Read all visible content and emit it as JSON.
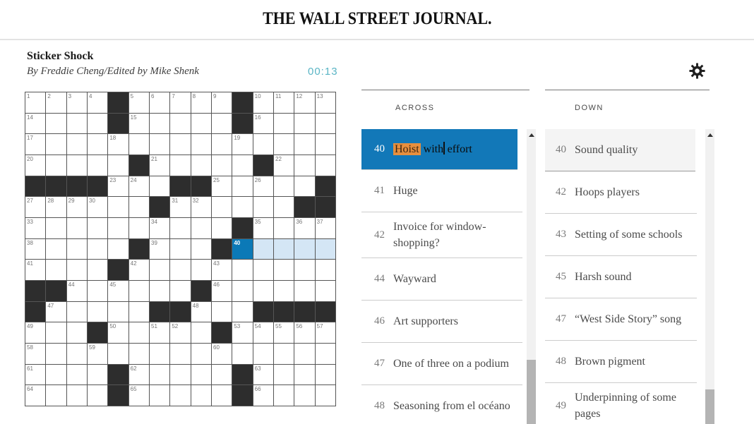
{
  "masthead": "THE WALL STREET JOURNAL.",
  "puzzle": {
    "title": "Sticker Shock",
    "byline": "By Freddie Cheng/Edited by Mike Shenk",
    "timer": "00:13"
  },
  "icons": {
    "settings": "gear",
    "scroll_up": "up-triangle"
  },
  "colors": {
    "selected_cell_blue": "#0b79b7",
    "word_highlight_blue": "#d4e6f5",
    "selected_clue_bg": "#1278b8",
    "text_selection_orange": "#e78f3e",
    "timer_teal": "#5ab5c5",
    "black_square": "#2d2d2d"
  },
  "grid": {
    "size": 15,
    "rows": [
      "....#.....#....",
      "....#.....#....",
      "...............",
      ".....#.....#...",
      "####...##.....#",
      "......#......##",
      "..........#....",
      ".....#...#.....",
      "....#..........",
      "##......#......",
      "#.....##...####",
      "...#.....#.....",
      "...............",
      "....#.....#....",
      "....#.....#...."
    ],
    "numbers": [
      [
        1,
        2,
        3,
        4,
        0,
        5,
        6,
        7,
        8,
        9,
        0,
        10,
        11,
        12,
        13
      ],
      [
        14,
        0,
        0,
        0,
        0,
        15,
        0,
        0,
        0,
        0,
        0,
        16,
        0,
        0,
        0
      ],
      [
        17,
        0,
        0,
        0,
        18,
        0,
        0,
        0,
        0,
        0,
        19,
        0,
        0,
        0,
        0
      ],
      [
        20,
        0,
        0,
        0,
        0,
        0,
        21,
        0,
        0,
        0,
        0,
        0,
        22,
        0,
        0
      ],
      [
        0,
        0,
        0,
        0,
        23,
        24,
        0,
        0,
        0,
        25,
        0,
        26,
        0,
        0,
        0
      ],
      [
        27,
        28,
        29,
        30,
        0,
        0,
        0,
        31,
        32,
        0,
        0,
        0,
        0,
        0,
        0
      ],
      [
        33,
        0,
        0,
        0,
        0,
        0,
        34,
        0,
        0,
        0,
        0,
        35,
        0,
        36,
        37
      ],
      [
        38,
        0,
        0,
        0,
        0,
        0,
        39,
        0,
        0,
        0,
        40,
        0,
        0,
        0,
        0
      ],
      [
        41,
        0,
        0,
        0,
        0,
        42,
        0,
        0,
        0,
        43,
        0,
        0,
        0,
        0,
        0
      ],
      [
        0,
        0,
        44,
        0,
        45,
        0,
        0,
        0,
        0,
        46,
        0,
        0,
        0,
        0,
        0
      ],
      [
        0,
        47,
        0,
        0,
        0,
        0,
        0,
        0,
        48,
        0,
        0,
        0,
        0,
        0,
        0
      ],
      [
        49,
        0,
        0,
        0,
        50,
        0,
        51,
        52,
        0,
        0,
        53,
        54,
        55,
        56,
        57
      ],
      [
        58,
        0,
        0,
        59,
        0,
        0,
        0,
        0,
        0,
        60,
        0,
        0,
        0,
        0,
        0
      ],
      [
        61,
        0,
        0,
        0,
        0,
        62,
        0,
        0,
        0,
        0,
        0,
        63,
        0,
        0,
        0
      ],
      [
        64,
        0,
        0,
        0,
        0,
        65,
        0,
        0,
        0,
        0,
        0,
        66,
        0,
        0,
        0
      ]
    ],
    "selected": {
      "row": 8,
      "col": 11
    },
    "word": [
      [
        8,
        12
      ],
      [
        8,
        13
      ],
      [
        8,
        14
      ],
      [
        8,
        15
      ]
    ]
  },
  "across": {
    "label": "ACROSS",
    "clues": [
      {
        "number": "40",
        "text": "Hoist with effort",
        "selected": true,
        "parts": {
          "highlight": "Hoist",
          "mid": " with",
          "end": " effort"
        }
      },
      {
        "number": "41",
        "text": "Huge"
      },
      {
        "number": "42",
        "text": "Invoice for window-shopping?"
      },
      {
        "number": "44",
        "text": "Wayward"
      },
      {
        "number": "46",
        "text": "Art supporters"
      },
      {
        "number": "47",
        "text": "One of three on a podium"
      },
      {
        "number": "48",
        "text": "Seasoning from el océano"
      }
    ]
  },
  "down": {
    "label": "DOWN",
    "clues": [
      {
        "number": "40",
        "text": "Sound quality",
        "highlighted": true
      },
      {
        "number": "42",
        "text": "Hoops players"
      },
      {
        "number": "43",
        "text": "Setting of some schools"
      },
      {
        "number": "45",
        "text": "Harsh sound"
      },
      {
        "number": "47",
        "text": "“West Side Story” song"
      },
      {
        "number": "48",
        "text": "Brown pigment"
      },
      {
        "number": "49",
        "text": "Underpinning of some pages"
      }
    ]
  }
}
